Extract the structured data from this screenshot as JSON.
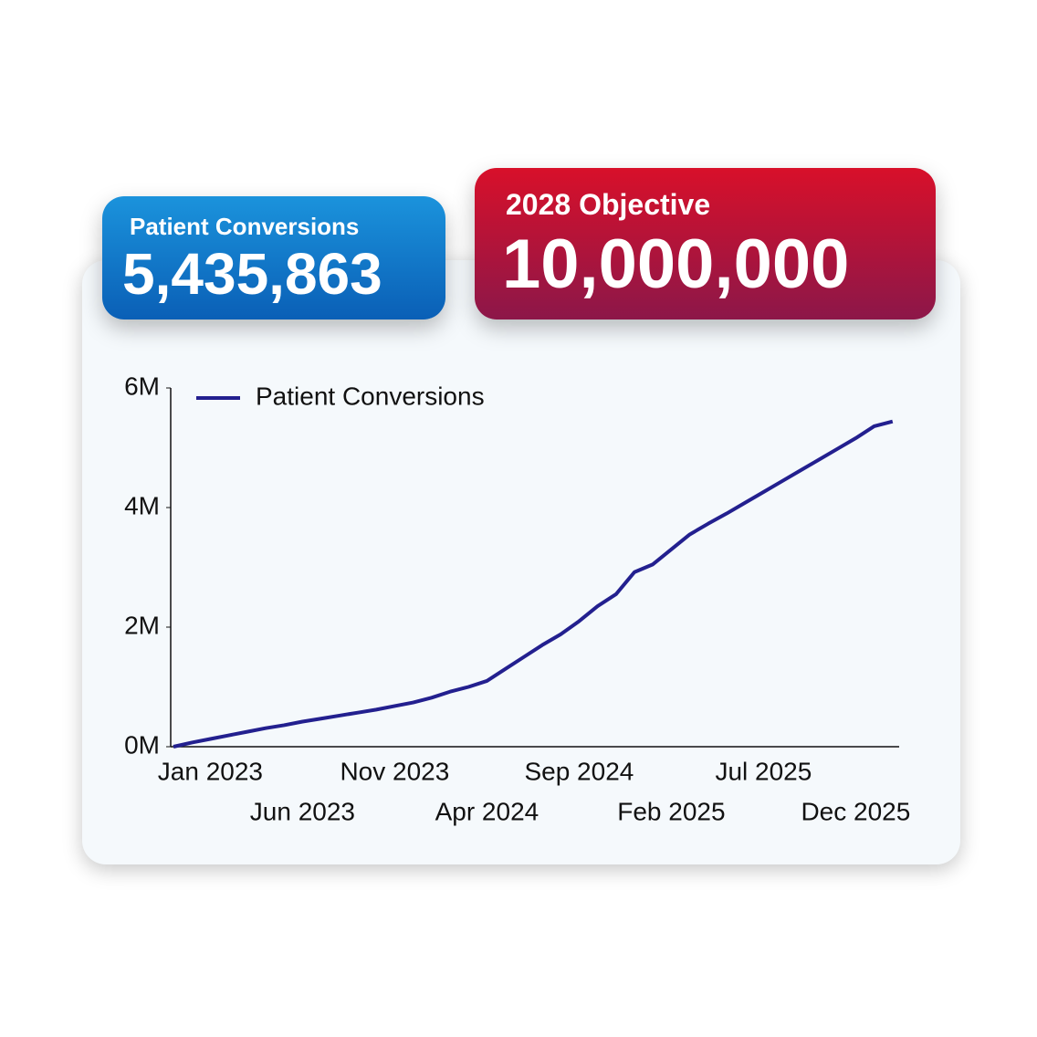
{
  "kpis": [
    {
      "label": "Patient Conversions",
      "value": "5,435,863"
    },
    {
      "label": "2028 Objective",
      "value": "10,000,000"
    }
  ],
  "chart_data": {
    "type": "line",
    "categories": [
      null,
      null,
      "Jan 2023",
      null,
      null,
      null,
      null,
      "Jun 2023",
      null,
      null,
      null,
      null,
      "Nov 2023",
      null,
      null,
      null,
      null,
      "Apr 2024",
      null,
      null,
      null,
      null,
      "Sep 2024",
      null,
      null,
      null,
      null,
      "Feb 2025",
      null,
      null,
      null,
      null,
      "Jul 2025",
      null,
      null,
      null,
      null,
      "Dec 2025",
      null,
      null
    ],
    "series": [
      {
        "name": "Patient Conversions",
        "color": "#23208f",
        "values": [
          0,
          0.07,
          0.13,
          0.19,
          0.25,
          0.31,
          0.36,
          0.42,
          0.47,
          0.52,
          0.57,
          0.62,
          0.68,
          0.74,
          0.82,
          0.92,
          1.0,
          1.1,
          1.3,
          1.5,
          1.7,
          1.88,
          2.1,
          2.35,
          2.55,
          2.92,
          3.05,
          3.3,
          3.55,
          3.73,
          3.9,
          4.08,
          4.26,
          4.44,
          4.62,
          4.8,
          4.98,
          5.16,
          5.36,
          5.44
        ]
      }
    ],
    "ylim": [
      0,
      6
    ],
    "yticks": [
      {
        "value": 0,
        "label": "0M"
      },
      {
        "value": 2,
        "label": "2M"
      },
      {
        "value": 4,
        "label": "4M"
      },
      {
        "value": 6,
        "label": "6M"
      }
    ],
    "legend": "top-left"
  }
}
